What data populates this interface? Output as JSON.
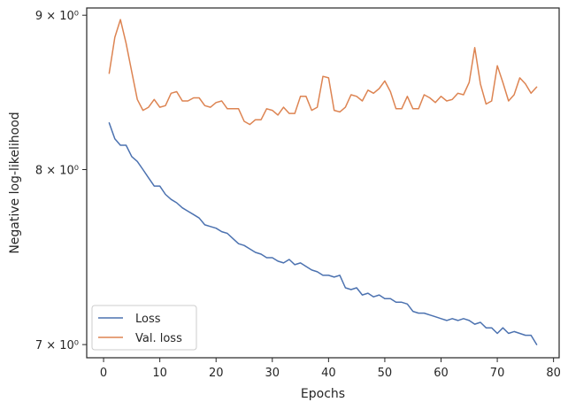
{
  "chart_data": {
    "type": "line",
    "xlabel": "Epochs",
    "ylabel": "Negative log-likelihood",
    "xlim": [
      -3,
      81
    ],
    "ylim": [
      6.93,
      9.05
    ],
    "yscale": "log",
    "grid": false,
    "legend_position": "lower-left",
    "x_ticks": [
      0,
      10,
      20,
      30,
      40,
      50,
      60,
      70,
      80
    ],
    "x_tick_labels": [
      "0",
      "10",
      "20",
      "30",
      "40",
      "50",
      "60",
      "70",
      "80"
    ],
    "y_ticks": [
      7,
      8,
      9
    ],
    "y_tick_labels": [
      "7 × 10⁰",
      "8 × 10⁰",
      "9 × 10⁰"
    ],
    "series": [
      {
        "name": "Loss",
        "color": "#4c72b0",
        "x": [
          1,
          2,
          3,
          4,
          5,
          6,
          7,
          8,
          9,
          10,
          11,
          12,
          13,
          14,
          15,
          16,
          17,
          18,
          19,
          20,
          21,
          22,
          23,
          24,
          25,
          26,
          27,
          28,
          29,
          30,
          31,
          32,
          33,
          34,
          35,
          36,
          37,
          38,
          39,
          40,
          41,
          42,
          43,
          44,
          45,
          46,
          47,
          48,
          49,
          50,
          51,
          52,
          53,
          54,
          55,
          56,
          57,
          58,
          59,
          60,
          61,
          62,
          63,
          64,
          65,
          66,
          67,
          68,
          69,
          70,
          71,
          72,
          73,
          74,
          75,
          76,
          77
        ],
        "values": [
          8.29,
          8.19,
          8.15,
          8.15,
          8.08,
          8.05,
          8.0,
          7.95,
          7.9,
          7.9,
          7.85,
          7.82,
          7.8,
          7.77,
          7.75,
          7.73,
          7.71,
          7.67,
          7.66,
          7.65,
          7.63,
          7.62,
          7.59,
          7.56,
          7.55,
          7.53,
          7.51,
          7.5,
          7.48,
          7.48,
          7.46,
          7.45,
          7.47,
          7.44,
          7.45,
          7.43,
          7.41,
          7.4,
          7.38,
          7.38,
          7.37,
          7.38,
          7.31,
          7.3,
          7.31,
          7.27,
          7.28,
          7.26,
          7.27,
          7.25,
          7.25,
          7.23,
          7.23,
          7.22,
          7.18,
          7.17,
          7.17,
          7.16,
          7.15,
          7.14,
          7.13,
          7.14,
          7.13,
          7.14,
          7.13,
          7.11,
          7.12,
          7.09,
          7.09,
          7.06,
          7.09,
          7.06,
          7.07,
          7.06,
          7.05,
          7.05,
          7.0
        ]
      },
      {
        "name": "Val. loss",
        "color": "#dd8452",
        "x": [
          1,
          2,
          3,
          4,
          5,
          6,
          7,
          8,
          9,
          10,
          11,
          12,
          13,
          14,
          15,
          16,
          17,
          18,
          19,
          20,
          21,
          22,
          23,
          24,
          25,
          26,
          27,
          28,
          29,
          30,
          31,
          32,
          33,
          34,
          35,
          36,
          37,
          38,
          39,
          40,
          41,
          42,
          43,
          44,
          45,
          46,
          47,
          48,
          49,
          50,
          51,
          52,
          53,
          54,
          55,
          56,
          57,
          58,
          59,
          60,
          61,
          62,
          63,
          64,
          65,
          66,
          67,
          68,
          69,
          70,
          71,
          72,
          73,
          74,
          75,
          76,
          77
        ],
        "values": [
          8.61,
          8.85,
          8.97,
          8.81,
          8.62,
          8.44,
          8.37,
          8.39,
          8.44,
          8.39,
          8.4,
          8.48,
          8.49,
          8.43,
          8.43,
          8.45,
          8.45,
          8.4,
          8.39,
          8.42,
          8.43,
          8.38,
          8.38,
          8.38,
          8.3,
          8.28,
          8.31,
          8.31,
          8.38,
          8.37,
          8.34,
          8.39,
          8.35,
          8.35,
          8.46,
          8.46,
          8.37,
          8.39,
          8.59,
          8.58,
          8.37,
          8.36,
          8.39,
          8.47,
          8.46,
          8.43,
          8.5,
          8.48,
          8.51,
          8.56,
          8.49,
          8.38,
          8.38,
          8.46,
          8.38,
          8.38,
          8.47,
          8.45,
          8.42,
          8.46,
          8.43,
          8.44,
          8.48,
          8.47,
          8.55,
          8.78,
          8.54,
          8.41,
          8.43,
          8.66,
          8.55,
          8.43,
          8.47,
          8.58,
          8.54,
          8.48,
          8.52
        ]
      }
    ]
  }
}
